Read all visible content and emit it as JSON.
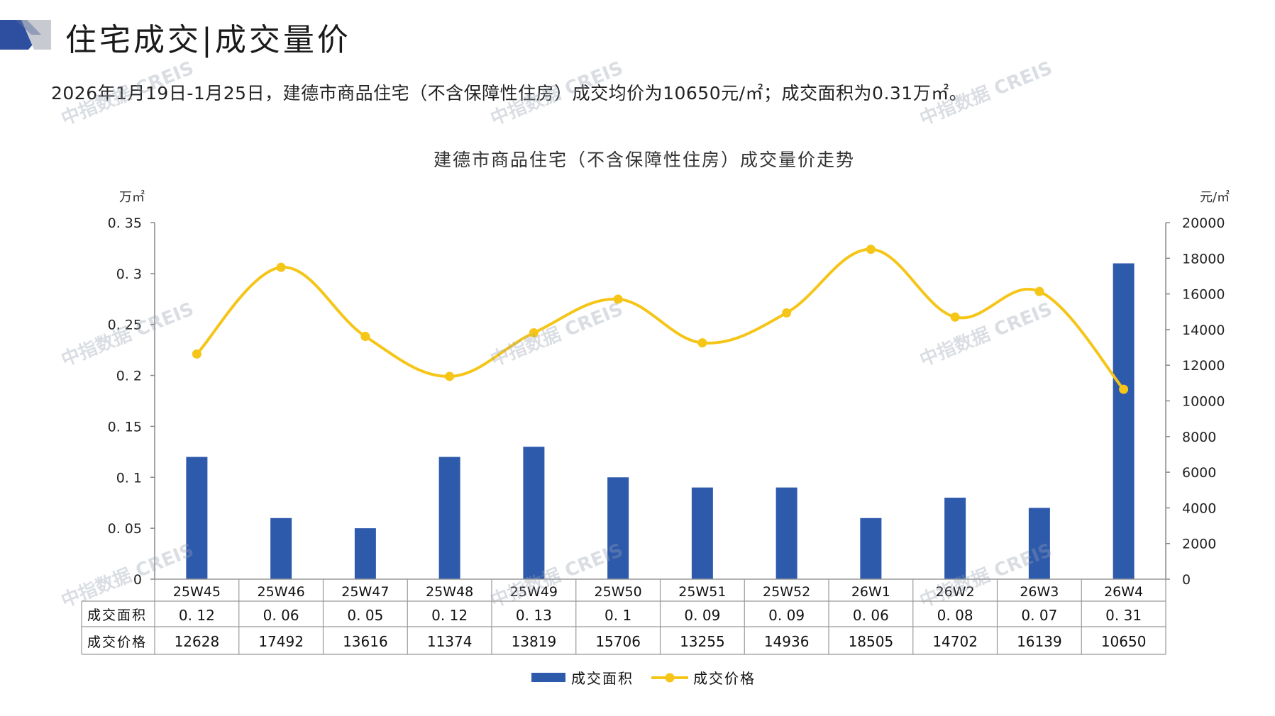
{
  "page": {
    "title": "住宅成交|成交量价",
    "summary": "2026年1月19日-1月25日，建德市商品住宅（不含保障性住房）成交均价为10650元/㎡；成交面积为0.31万㎡。",
    "watermark": "中指数据 CREIS",
    "colors": {
      "bar": "#2E5AAC",
      "line": "#F5C518",
      "deco_blue": "#2E4FA0",
      "deco_gray": "#B8BCC4"
    }
  },
  "chart_data": {
    "type": "bar+line",
    "title": "建德市商品住宅（不含保障性住房）成交量价走势",
    "categories": [
      "25W45",
      "25W46",
      "25W47",
      "25W48",
      "25W49",
      "25W50",
      "25W51",
      "25W52",
      "26W1",
      "26W2",
      "26W3",
      "26W4"
    ],
    "series": [
      {
        "name": "成交面积",
        "type": "bar",
        "axis": "left",
        "values": [
          0.12,
          0.06,
          0.05,
          0.12,
          0.13,
          0.1,
          0.09,
          0.09,
          0.06,
          0.08,
          0.07,
          0.31
        ],
        "labels": [
          "0.12",
          "0.06",
          "0.05",
          "0.12",
          "0.13",
          "0.1",
          "0.09",
          "0.09",
          "0.06",
          "0.08",
          "0.07",
          "0.31"
        ]
      },
      {
        "name": "成交价格",
        "type": "line",
        "axis": "right",
        "values": [
          12628,
          17492,
          13616,
          11374,
          13819,
          15706,
          13255,
          14936,
          18505,
          14702,
          16139,
          10650
        ],
        "labels": [
          "12628",
          "17492",
          "13616",
          "11374",
          "13819",
          "15706",
          "13255",
          "14936",
          "18505",
          "14702",
          "16139",
          "10650"
        ]
      }
    ],
    "y_left": {
      "unit": "万㎡",
      "ylim": [
        0,
        0.35
      ],
      "ticks": [
        "0",
        "0.05",
        "0.1",
        "0.15",
        "0.2",
        "0.25",
        "0.3",
        "0.35"
      ]
    },
    "y_right": {
      "unit": "元/㎡",
      "ylim": [
        0,
        20000
      ],
      "ticks": [
        "0",
        "2000",
        "4000",
        "6000",
        "8000",
        "10000",
        "12000",
        "14000",
        "16000",
        "18000",
        "20000"
      ]
    },
    "grid": false,
    "legend_position": "bottom",
    "data_table": true
  }
}
